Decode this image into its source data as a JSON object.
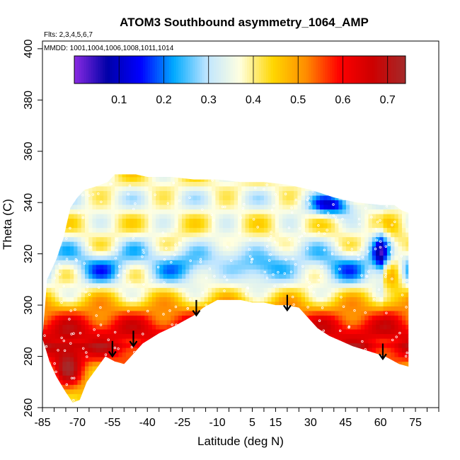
{
  "chart_data": {
    "type": "heatmap",
    "title": "ATOM3 Southbound asymmetry_1064_AMP",
    "flights_note": "Flts: 2,3,4,5,6,7",
    "dates_note": "MMDD: 1001,1004,1006,1008,1011,1014",
    "xlabel": "Latitude (deg N)",
    "ylabel": "Theta (C)",
    "xlim": [
      -85,
      85
    ],
    "ylim": [
      260,
      403
    ],
    "x_ticks": [
      -85,
      -70,
      -55,
      -40,
      -25,
      -10,
      5,
      15,
      30,
      45,
      60,
      75
    ],
    "y_ticks": [
      260,
      280,
      300,
      320,
      340,
      360,
      380,
      400
    ],
    "colorbar": {
      "min": 0.0,
      "max": 0.74,
      "ticks": [
        0.1,
        0.2,
        0.3,
        0.4,
        0.5,
        0.6,
        0.7
      ],
      "colors": [
        "#8a2be2",
        "#0000a8",
        "#0000ff",
        "#00aaff",
        "#bfe5ff",
        "#ffffe0",
        "#ffd700",
        "#ff8c00",
        "#ff0000",
        "#cd0000",
        "#a52a2a"
      ]
    },
    "boundary": [
      [
        -85,
        287
      ],
      [
        -83,
        310
      ],
      [
        -79,
        318
      ],
      [
        -76,
        326
      ],
      [
        -73,
        338
      ],
      [
        -70,
        342
      ],
      [
        -67,
        345
      ],
      [
        -63,
        346
      ],
      [
        -60,
        347
      ],
      [
        -57,
        348
      ],
      [
        -54,
        351
      ],
      [
        -45,
        351
      ],
      [
        -40,
        350
      ],
      [
        -30,
        350
      ],
      [
        -20,
        349
      ],
      [
        -10,
        349
      ],
      [
        0,
        348
      ],
      [
        10,
        348
      ],
      [
        20,
        347
      ],
      [
        30,
        345
      ],
      [
        40,
        342
      ],
      [
        50,
        340
      ],
      [
        60,
        339
      ],
      [
        66,
        339
      ],
      [
        69,
        337
      ],
      [
        72,
        336
      ],
      [
        72,
        276
      ],
      [
        68,
        277
      ],
      [
        62,
        280
      ],
      [
        55,
        282
      ],
      [
        48,
        284
      ],
      [
        43,
        286
      ],
      [
        38,
        288
      ],
      [
        33,
        291
      ],
      [
        29,
        295
      ],
      [
        25,
        299
      ],
      [
        20,
        300
      ],
      [
        15,
        300
      ],
      [
        10,
        301
      ],
      [
        5,
        301
      ],
      [
        0,
        302
      ],
      [
        -10,
        302
      ],
      [
        -16,
        299
      ],
      [
        -20,
        296
      ],
      [
        -28,
        292
      ],
      [
        -35,
        289
      ],
      [
        -42,
        285
      ],
      [
        -47,
        280
      ],
      [
        -50,
        277
      ],
      [
        -54,
        278
      ],
      [
        -58,
        280
      ],
      [
        -62,
        275
      ],
      [
        -66,
        270
      ],
      [
        -69,
        263
      ],
      [
        -72,
        262
      ],
      [
        -75,
        266
      ],
      [
        -79,
        272
      ],
      [
        -82,
        278
      ]
    ],
    "arrows": [
      {
        "x": -55,
        "top": 286,
        "bottom": 280
      },
      {
        "x": -46,
        "top": 290,
        "bottom": 284
      },
      {
        "x": -19,
        "top": 302,
        "bottom": 296
      },
      {
        "x": 20,
        "top": 304,
        "bottom": 298
      },
      {
        "x": 61,
        "top": 285,
        "bottom": 279
      }
    ]
  }
}
